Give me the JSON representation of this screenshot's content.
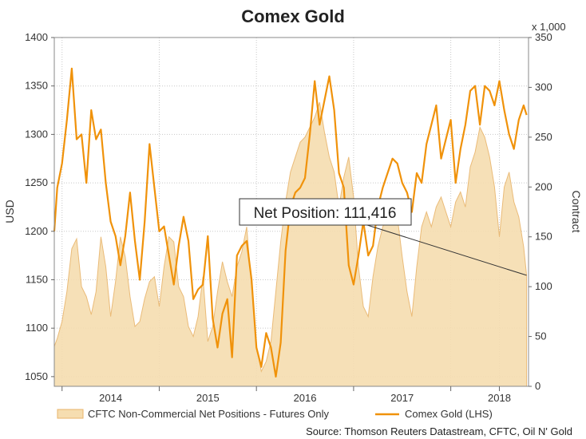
{
  "chart_data": {
    "type": "line",
    "title": "Comex Gold",
    "ylabel_left": "USD",
    "ylabel_right": "Contract",
    "right_axis_multiplier": "x 1,000",
    "left_ylim": [
      1040,
      1400
    ],
    "left_ticks": [
      "1050",
      "1100",
      "1150",
      "1200",
      "1250",
      "1300",
      "1350",
      "1400"
    ],
    "right_ylim": [
      0,
      350
    ],
    "right_ticks": [
      "0",
      "50",
      "100",
      "150",
      "200",
      "250",
      "300",
      "350"
    ],
    "xlim": [
      2013.42,
      2018.3
    ],
    "x_ticks": [
      {
        "label": "2014",
        "value": 2014.0
      },
      {
        "label": "2015",
        "value": 2015.0
      },
      {
        "label": "2016",
        "value": 2016.0
      },
      {
        "label": "2017",
        "value": 2017.0
      },
      {
        "label": "2018",
        "value": 2018.0
      }
    ],
    "x_grid": [
      2013.5,
      2014.5,
      2015.5,
      2016.5,
      2017.5,
      2018.0
    ],
    "grid": true,
    "annotation": {
      "text": "Net Position: 111,416",
      "target_x": 2018.28,
      "target_y": 111.4
    },
    "legend_position": "bottom",
    "source": "Source: Thomson Reuters Datastream, CFTC, Oil N' Gold",
    "colors": {
      "gold_line": "#f0920a",
      "net_fill": "#f6ddb0",
      "net_stroke": "#e8b46a"
    },
    "series": [
      {
        "name": "CFTC Non-Commercial Net Positions - Futures Only",
        "axis": "right",
        "style": "area",
        "x": [
          2013.42,
          2013.45,
          2013.5,
          2013.55,
          2013.6,
          2013.65,
          2013.7,
          2013.75,
          2013.8,
          2013.85,
          2013.9,
          2013.95,
          2014.0,
          2014.05,
          2014.1,
          2014.15,
          2014.2,
          2014.25,
          2014.3,
          2014.35,
          2014.4,
          2014.45,
          2014.5,
          2014.55,
          2014.6,
          2014.65,
          2014.7,
          2014.75,
          2014.8,
          2014.85,
          2014.9,
          2014.95,
          2015.0,
          2015.05,
          2015.1,
          2015.15,
          2015.2,
          2015.25,
          2015.3,
          2015.35,
          2015.4,
          2015.45,
          2015.5,
          2015.55,
          2015.6,
          2015.65,
          2015.7,
          2015.75,
          2015.8,
          2015.85,
          2015.9,
          2015.95,
          2016.0,
          2016.05,
          2016.1,
          2016.15,
          2016.2,
          2016.25,
          2016.3,
          2016.35,
          2016.4,
          2016.45,
          2016.5,
          2016.55,
          2016.6,
          2016.65,
          2016.7,
          2016.75,
          2016.8,
          2016.85,
          2016.9,
          2016.95,
          2017.0,
          2017.05,
          2017.1,
          2017.15,
          2017.2,
          2017.25,
          2017.3,
          2017.35,
          2017.4,
          2017.45,
          2017.5,
          2017.55,
          2017.6,
          2017.65,
          2017.7,
          2017.75,
          2017.8,
          2017.85,
          2017.9,
          2017.95,
          2018.0,
          2018.05,
          2018.1,
          2018.15,
          2018.2,
          2018.25,
          2018.28
        ],
        "values": [
          40,
          48,
          65,
          95,
          138,
          148,
          100,
          90,
          72,
          95,
          150,
          120,
          70,
          105,
          150,
          130,
          90,
          60,
          65,
          88,
          105,
          110,
          80,
          120,
          150,
          145,
          100,
          90,
          60,
          50,
          70,
          110,
          45,
          60,
          95,
          125,
          105,
          90,
          120,
          135,
          160,
          100,
          40,
          15,
          25,
          45,
          95,
          145,
          185,
          215,
          230,
          245,
          250,
          260,
          270,
          285,
          255,
          230,
          215,
          180,
          210,
          230,
          190,
          120,
          80,
          70,
          110,
          140,
          160,
          170,
          185,
          170,
          130,
          95,
          70,
          120,
          160,
          175,
          160,
          180,
          190,
          175,
          160,
          185,
          195,
          180,
          220,
          235,
          260,
          250,
          230,
          200,
          150,
          200,
          215,
          185,
          170,
          140,
          111.4
        ]
      },
      {
        "name": "Comex Gold (LHS)",
        "axis": "left",
        "style": "line",
        "x": [
          2013.42,
          2013.45,
          2013.5,
          2013.55,
          2013.6,
          2013.65,
          2013.7,
          2013.75,
          2013.8,
          2013.85,
          2013.9,
          2013.95,
          2014.0,
          2014.05,
          2014.1,
          2014.15,
          2014.2,
          2014.25,
          2014.3,
          2014.35,
          2014.4,
          2014.45,
          2014.5,
          2014.55,
          2014.6,
          2014.65,
          2014.7,
          2014.75,
          2014.8,
          2014.85,
          2014.9,
          2014.95,
          2015.0,
          2015.05,
          2015.1,
          2015.15,
          2015.2,
          2015.25,
          2015.3,
          2015.35,
          2015.4,
          2015.45,
          2015.5,
          2015.55,
          2015.6,
          2015.65,
          2015.7,
          2015.75,
          2015.8,
          2015.85,
          2015.9,
          2015.95,
          2016.0,
          2016.05,
          2016.1,
          2016.15,
          2016.2,
          2016.25,
          2016.3,
          2016.35,
          2016.4,
          2016.45,
          2016.5,
          2016.55,
          2016.6,
          2016.65,
          2016.7,
          2016.75,
          2016.8,
          2016.85,
          2016.9,
          2016.95,
          2017.0,
          2017.05,
          2017.1,
          2017.15,
          2017.2,
          2017.25,
          2017.3,
          2017.35,
          2017.4,
          2017.45,
          2017.5,
          2017.55,
          2017.6,
          2017.65,
          2017.7,
          2017.75,
          2017.8,
          2017.85,
          2017.9,
          2017.95,
          2018.0,
          2018.05,
          2018.1,
          2018.15,
          2018.2,
          2018.25,
          2018.28
        ],
        "values": [
          1200,
          1245,
          1270,
          1315,
          1368,
          1295,
          1300,
          1250,
          1325,
          1295,
          1305,
          1250,
          1210,
          1195,
          1165,
          1195,
          1240,
          1190,
          1150,
          1210,
          1290,
          1245,
          1200,
          1205,
          1175,
          1145,
          1185,
          1215,
          1190,
          1130,
          1140,
          1145,
          1195,
          1110,
          1080,
          1115,
          1130,
          1070,
          1175,
          1185,
          1190,
          1150,
          1080,
          1060,
          1095,
          1080,
          1050,
          1085,
          1180,
          1225,
          1240,
          1245,
          1255,
          1300,
          1355,
          1310,
          1335,
          1360,
          1325,
          1260,
          1245,
          1165,
          1145,
          1175,
          1210,
          1175,
          1185,
          1225,
          1245,
          1260,
          1275,
          1270,
          1250,
          1240,
          1220,
          1260,
          1250,
          1290,
          1310,
          1330,
          1275,
          1295,
          1315,
          1250,
          1285,
          1310,
          1345,
          1350,
          1310,
          1350,
          1345,
          1330,
          1355,
          1325,
          1300,
          1285,
          1315,
          1330,
          1320
        ]
      }
    ]
  }
}
